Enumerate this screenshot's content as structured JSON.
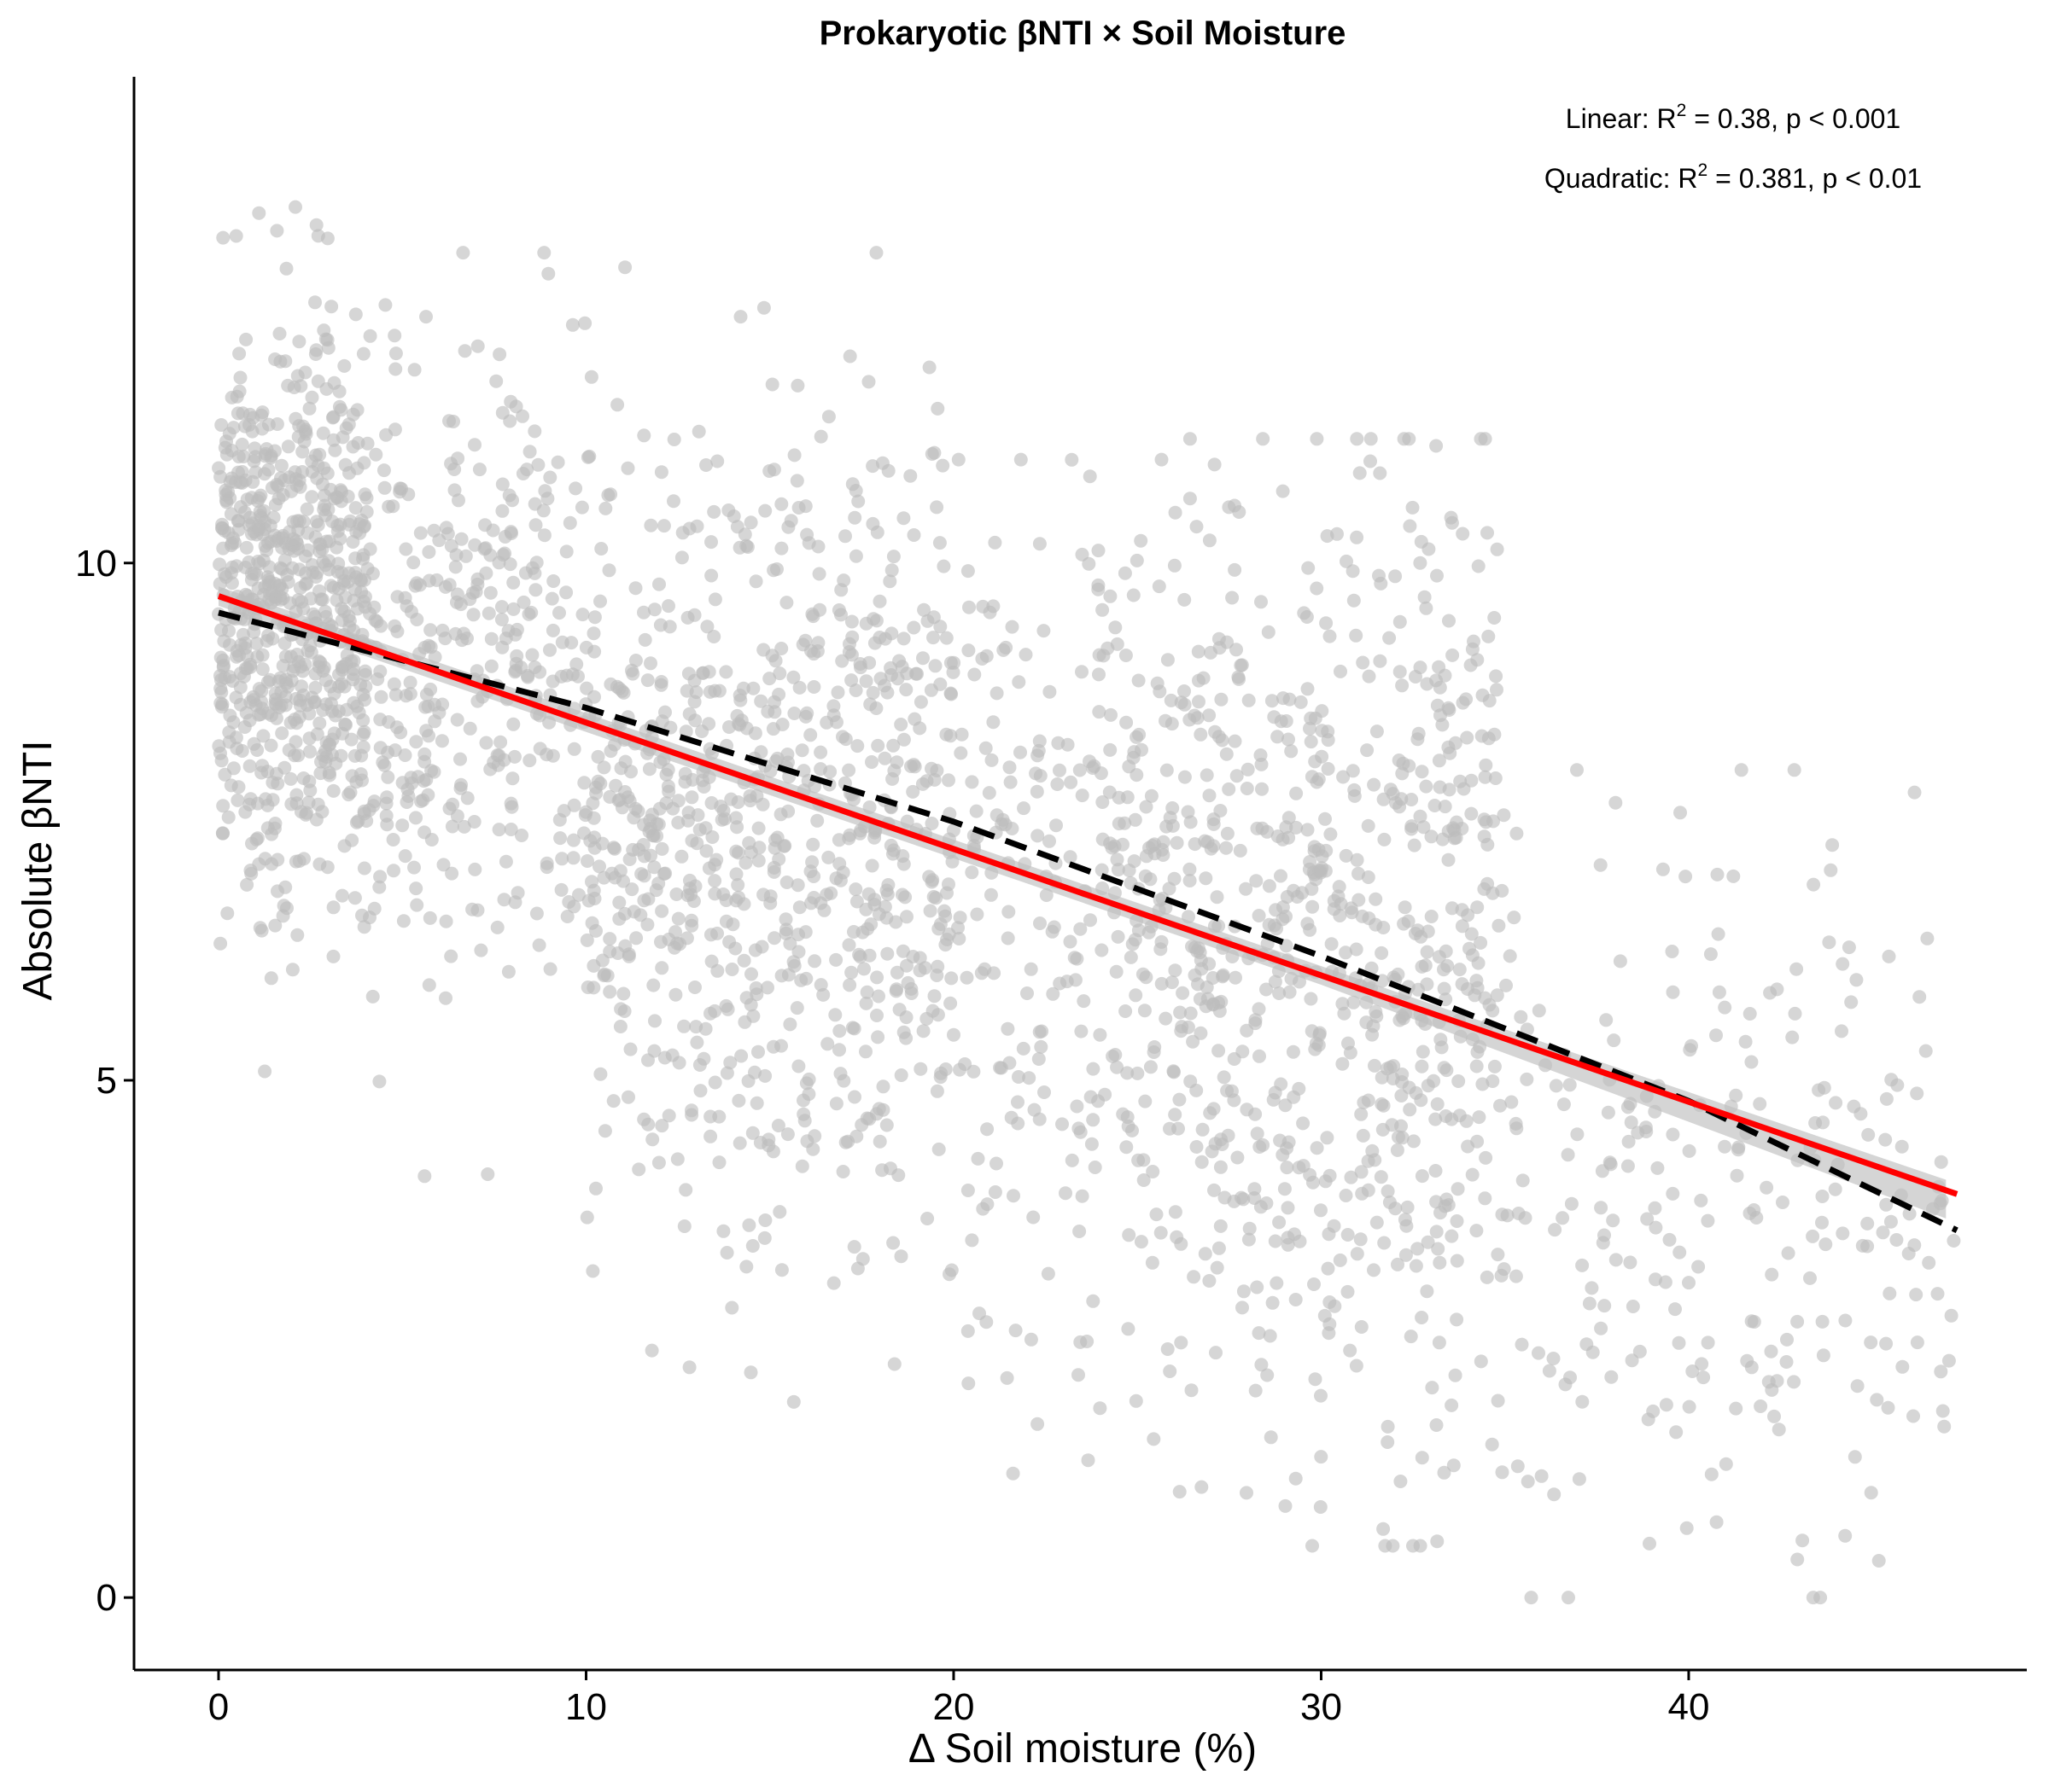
{
  "chart_data": {
    "type": "scatter",
    "title": "Prokaryotic βNTI × Soil Moisture",
    "xlabel": "Δ Soil moisture (%)",
    "ylabel": "Absolute βNTI",
    "xlim": [
      -2.3,
      49.2
    ],
    "ylim": [
      -0.7,
      14.7
    ],
    "x_ticks": [
      0,
      10,
      20,
      30,
      40
    ],
    "x_tick_labels": [
      "0",
      "10",
      "20",
      "30",
      "40"
    ],
    "y_ticks": [
      0,
      5,
      10
    ],
    "y_tick_labels": [
      "0",
      "5",
      "10"
    ],
    "grid": false,
    "legend": "none",
    "colors": {
      "points": "#bdbdbd",
      "linear_fit": "#ff0000",
      "quadratic_fit": "#000000",
      "confidence_band": "#bebebe"
    },
    "annotations": [
      {
        "prefix": "Linear:  R",
        "sup": "2",
        "suffix": " = 0.38, p < 0.001"
      },
      {
        "prefix": "Quadratic:  R",
        "sup": "2",
        "suffix": " = 0.381, p < 0.01"
      }
    ],
    "linear_fit": {
      "x": [
        0,
        47.3
      ],
      "y": [
        9.68,
        3.9
      ]
    },
    "quadratic_fit": {
      "x": [
        0,
        10,
        20,
        30,
        40,
        47.3
      ],
      "y": [
        9.52,
        8.6,
        7.5,
        6.2,
        4.8,
        3.55
      ]
    },
    "point_clusters": [
      {
        "x_range": [
          0,
          4
        ],
        "y_mean": 9.6,
        "y_sd": 1.4,
        "n": 700,
        "y_min": 3.5,
        "y_max": 14.0
      },
      {
        "x_range": [
          4,
          10
        ],
        "y_mean": 9.0,
        "y_sd": 1.5,
        "n": 350,
        "y_min": 3.0,
        "y_max": 13.0
      },
      {
        "x_range": [
          10,
          20
        ],
        "y_mean": 7.5,
        "y_sd": 1.9,
        "n": 800,
        "y_min": 0.2,
        "y_max": 13.0
      },
      {
        "x_range": [
          20,
          26
        ],
        "y_mean": 6.7,
        "y_sd": 2.0,
        "n": 300,
        "y_min": 1.2,
        "y_max": 11.0
      },
      {
        "x_range": [
          26,
          35
        ],
        "y_mean": 6.2,
        "y_sd": 2.3,
        "n": 700,
        "y_min": 0.5,
        "y_max": 11.2
      },
      {
        "x_range": [
          35,
          47.3
        ],
        "y_mean": 3.8,
        "y_sd": 1.7,
        "n": 250,
        "y_min": 0.0,
        "y_max": 8.0
      }
    ],
    "n_points": 3100
  }
}
